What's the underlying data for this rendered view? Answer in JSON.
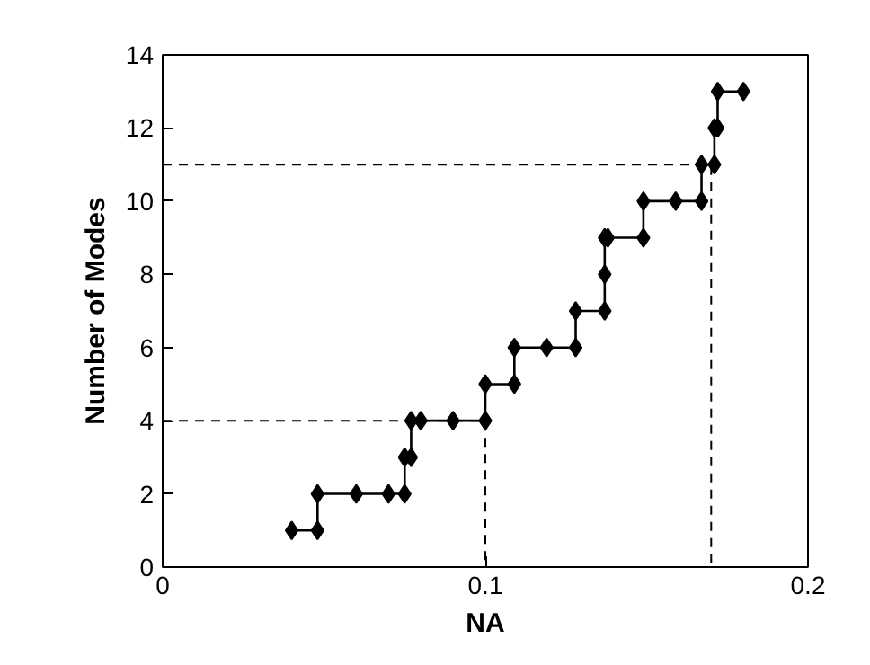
{
  "chart_data": {
    "type": "line",
    "xlabel": "NA",
    "ylabel": "Number of Modes",
    "xlim": [
      0,
      0.2
    ],
    "ylim": [
      0,
      14
    ],
    "xticks": [
      0,
      0.1,
      0.2
    ],
    "yticks": [
      0,
      2,
      4,
      6,
      8,
      10,
      12,
      14
    ],
    "grid": false,
    "series": [
      {
        "color": "#000000",
        "marker": "diamond",
        "line_style": "solid",
        "x": [
          0.04,
          0.048,
          0.048,
          0.06,
          0.07,
          0.075,
          0.075,
          0.077,
          0.077,
          0.08,
          0.09,
          0.1,
          0.1,
          0.109,
          0.109,
          0.119,
          0.128,
          0.128,
          0.137,
          0.137,
          0.137,
          0.138,
          0.149,
          0.149,
          0.159,
          0.167,
          0.167,
          0.171,
          0.171,
          0.172,
          0.172,
          0.18
        ],
        "values": [
          1,
          1,
          2,
          2,
          2,
          2,
          3,
          3,
          4,
          4,
          4,
          4,
          5,
          5,
          6,
          6,
          6,
          7,
          7,
          8,
          9,
          9,
          9,
          10,
          10,
          10,
          11,
          11,
          12,
          12,
          13,
          13
        ]
      },
      {
        "color": "#000000",
        "marker": "none",
        "line_style": "dashed",
        "x": [
          0,
          0.1,
          0.1
        ],
        "values": [
          4,
          4,
          0
        ]
      },
      {
        "color": "#000000",
        "marker": "none",
        "line_style": "dashed",
        "x": [
          0,
          0.17,
          0.17
        ],
        "values": [
          11,
          11,
          0
        ]
      }
    ]
  }
}
